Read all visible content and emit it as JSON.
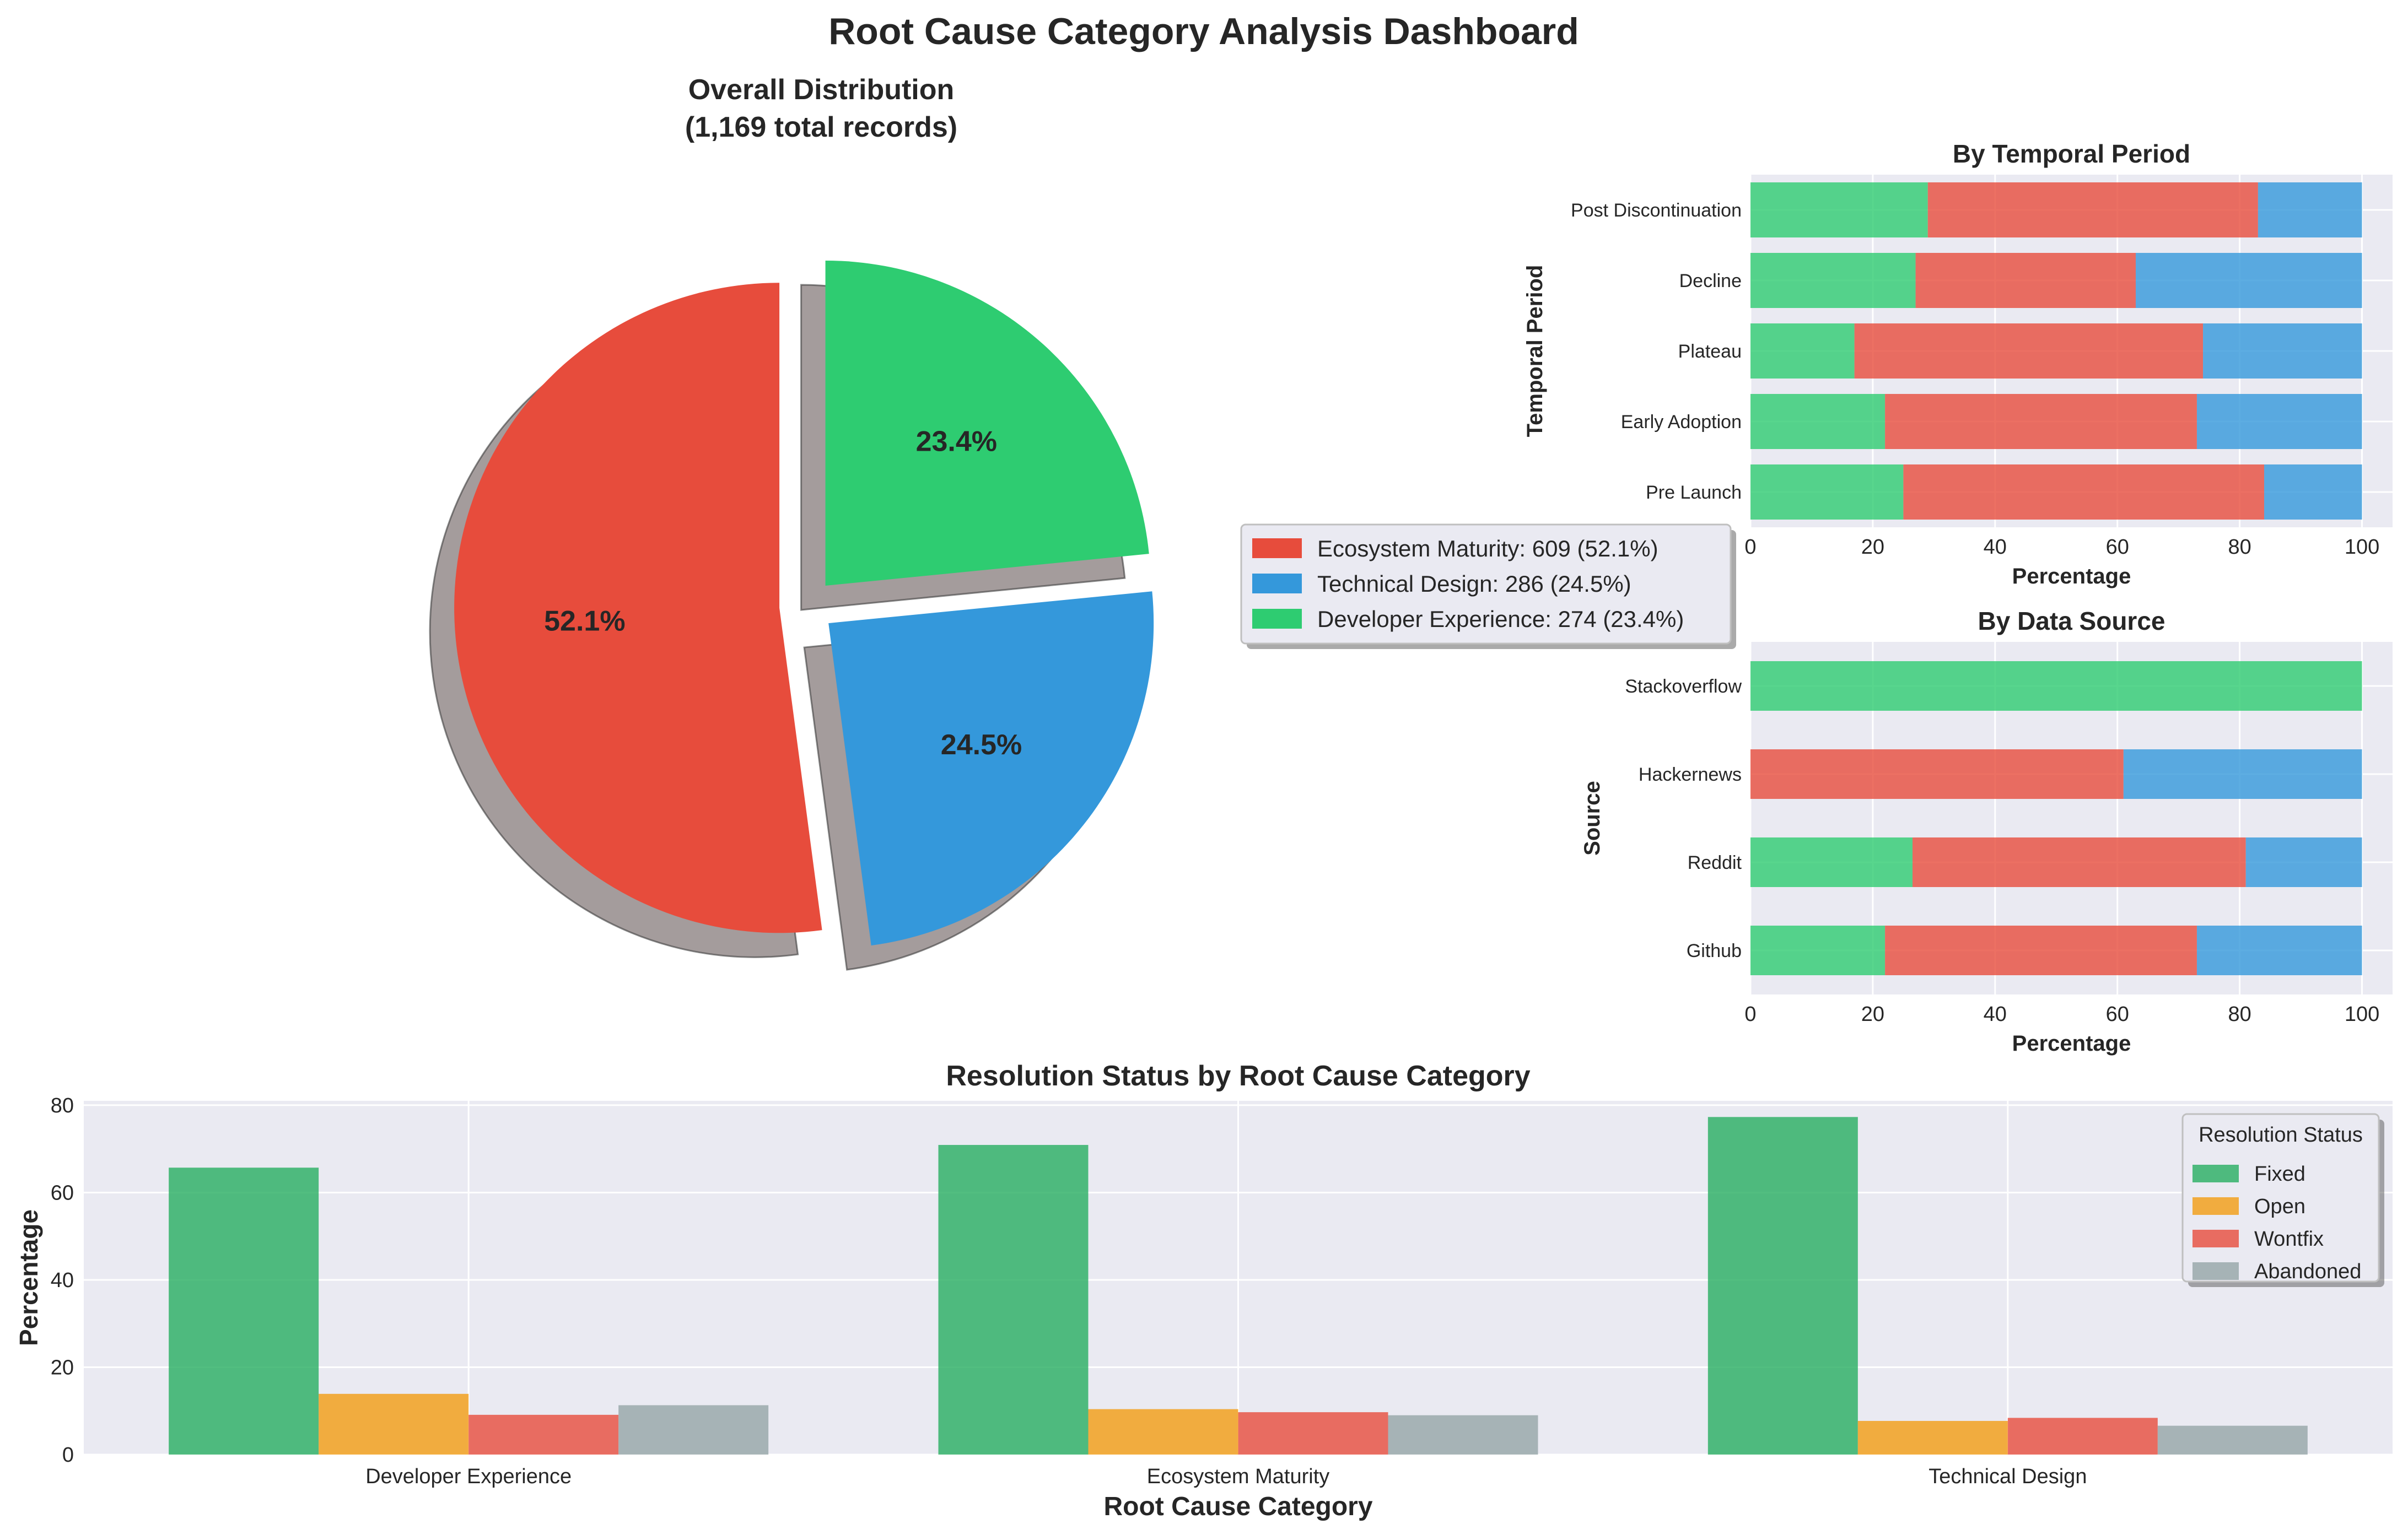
{
  "title": "Root Cause Category Analysis Dashboard",
  "colors": {
    "ecosystem": "#e74c3c",
    "technical": "#3498db",
    "developer": "#2ecc71",
    "fixed": "#27ae60",
    "open": "#f39c12",
    "wontfix": "#e74c3c",
    "abandoned": "#95a5a6",
    "panel_bg": "#eaeaf2"
  },
  "chart_data": [
    {
      "id": "pie",
      "type": "pie",
      "title": "Overall Distribution\n(1,169 total records)",
      "slices": [
        {
          "label": "Ecosystem Maturity",
          "value": 609,
          "pct_label": "52.1%",
          "legend": "Ecosystem Maturity: 609 (52.1%)",
          "color": "#e74c3c"
        },
        {
          "label": "Technical Design",
          "value": 286,
          "pct_label": "24.5%",
          "legend": "Technical Design: 286 (24.5%)",
          "color": "#3498db"
        },
        {
          "label": "Developer Experience",
          "value": 274,
          "pct_label": "23.4%",
          "legend": "Developer Experience: 274 (23.4%)",
          "color": "#2ecc71"
        }
      ],
      "start_angle_deg": 90,
      "explode": true,
      "shadow": true,
      "legend_position": "right"
    },
    {
      "id": "temporal",
      "type": "bar",
      "orientation": "horizontal",
      "stacked": true,
      "title": "By Temporal Period",
      "xlabel": "Percentage",
      "ylabel": "Temporal Period",
      "xlim": [
        0,
        105
      ],
      "xticks": [
        0,
        20,
        40,
        60,
        80,
        100
      ],
      "categories": [
        "Pre Launch",
        "Early Adoption",
        "Plateau",
        "Decline",
        "Post Discontinuation"
      ],
      "series": [
        {
          "color": "#2ecc71",
          "values": [
            25,
            22,
            17,
            27,
            29
          ]
        },
        {
          "color": "#e74c3c",
          "values": [
            59,
            51,
            57,
            36,
            54
          ]
        },
        {
          "color": "#3498db",
          "values": [
            16,
            27,
            26,
            37,
            17
          ]
        }
      ]
    },
    {
      "id": "source",
      "type": "bar",
      "orientation": "horizontal",
      "stacked": true,
      "title": "By Data Source",
      "xlabel": "Percentage",
      "ylabel": "Source",
      "xlim": [
        0,
        105
      ],
      "xticks": [
        0,
        20,
        40,
        60,
        80,
        100
      ],
      "categories": [
        "Github",
        "Reddit",
        "Hackernews",
        "Stackoverflow"
      ],
      "series": [
        {
          "color": "#2ecc71",
          "values": [
            22,
            26.5,
            0,
            100
          ]
        },
        {
          "color": "#e74c3c",
          "values": [
            51,
            54.5,
            61,
            0
          ]
        },
        {
          "color": "#3498db",
          "values": [
            27,
            19,
            39,
            0
          ]
        }
      ]
    },
    {
      "id": "resolution",
      "type": "bar",
      "orientation": "vertical",
      "grouped": true,
      "title": "Resolution Status by Root Cause Category",
      "xlabel": "Root Cause Category",
      "ylabel": "Percentage",
      "ylim": [
        0,
        81
      ],
      "yticks": [
        0,
        20,
        40,
        60,
        80
      ],
      "categories": [
        "Developer Experience",
        "Ecosystem Maturity",
        "Technical Design"
      ],
      "legend_title": "Resolution Status",
      "legend_position": "top-right",
      "series": [
        {
          "name": "Fixed",
          "color": "#27ae60",
          "values": [
            65.7,
            70.9,
            77.3
          ]
        },
        {
          "name": "Open",
          "color": "#f39c12",
          "values": [
            13.9,
            10.4,
            7.7
          ]
        },
        {
          "name": "Wontfix",
          "color": "#e74c3c",
          "values": [
            9.1,
            9.7,
            8.4
          ]
        },
        {
          "name": "Abandoned",
          "color": "#95a5a6",
          "values": [
            11.3,
            9.0,
            6.6
          ]
        }
      ]
    }
  ]
}
